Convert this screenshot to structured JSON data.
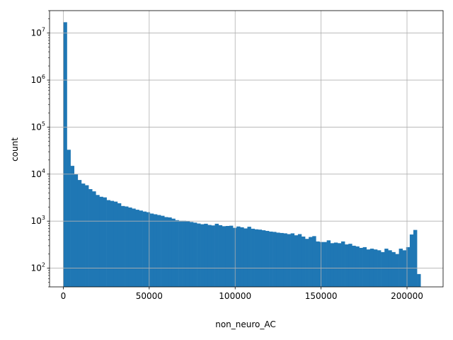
{
  "chart_data": {
    "type": "bar",
    "subtype": "histogram",
    "xlabel": "non_neuro_AC",
    "ylabel": "count",
    "yscale": "log",
    "grid": true,
    "bar_color": "#1f77b4",
    "xlim": [
      -8000,
      221000
    ],
    "ylim": [
      40,
      30000000
    ],
    "x_ticks": [
      0,
      50000,
      100000,
      150000,
      200000
    ],
    "x_tick_labels": [
      "0",
      "50000",
      "100000",
      "150000",
      "200000"
    ],
    "y_ticks": [
      100,
      1000,
      10000,
      100000,
      1000000,
      10000000
    ],
    "y_tick_labels": [
      {
        "base": "10",
        "exp": "2"
      },
      {
        "base": "10",
        "exp": "3"
      },
      {
        "base": "10",
        "exp": "4"
      },
      {
        "base": "10",
        "exp": "5"
      },
      {
        "base": "10",
        "exp": "6"
      },
      {
        "base": "10",
        "exp": "7"
      }
    ],
    "bin_start": 0,
    "bin_width": 2100,
    "counts": [
      17000000,
      33000,
      15000,
      10000,
      7500,
      6300,
      5800,
      4800,
      4300,
      3600,
      3300,
      3200,
      2800,
      2700,
      2600,
      2400,
      2100,
      2050,
      1950,
      1850,
      1750,
      1680,
      1600,
      1550,
      1450,
      1400,
      1350,
      1300,
      1220,
      1200,
      1130,
      1050,
      1020,
      1020,
      990,
      960,
      930,
      890,
      860,
      880,
      830,
      810,
      880,
      820,
      780,
      790,
      800,
      720,
      770,
      740,
      700,
      760,
      690,
      670,
      660,
      640,
      620,
      600,
      590,
      570,
      560,
      550,
      530,
      550,
      500,
      530,
      470,
      420,
      460,
      480,
      370,
      360,
      360,
      390,
      340,
      350,
      340,
      370,
      320,
      330,
      300,
      290,
      270,
      280,
      250,
      260,
      250,
      240,
      220,
      260,
      240,
      220,
      200,
      260,
      240,
      280,
      520,
      650,
      75
    ]
  }
}
